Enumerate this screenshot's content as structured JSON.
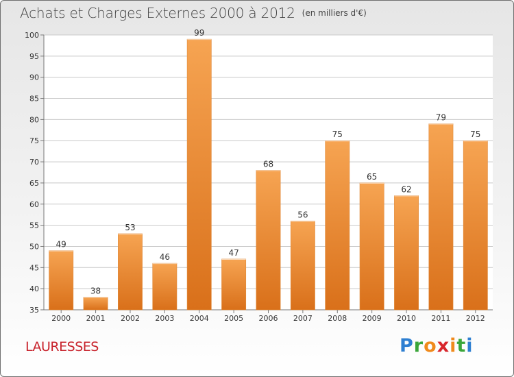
{
  "title": "Achats et Charges Externes 2000 à 2012",
  "unit": "(en milliers d'€)",
  "town": "LAURESSES",
  "logo": {
    "letters": [
      "P",
      "r",
      "o",
      "x",
      "i",
      "t",
      "i"
    ],
    "colors": [
      "#2e7fd1",
      "#3aa63a",
      "#f08a1c",
      "#d8262c",
      "#f08a1c",
      "#3aa63a",
      "#2e7fd1"
    ]
  },
  "colors": {
    "bar": "#f08a2c",
    "bar_light": "#f6a452",
    "bar_dark": "#d9701a",
    "grid": "#c8c8c8"
  },
  "chart_data": {
    "type": "bar",
    "title": "Achats et Charges Externes 2000 à 2012",
    "xlabel": "",
    "ylabel": "",
    "categories": [
      "2000",
      "2001",
      "2002",
      "2003",
      "2004",
      "2005",
      "2006",
      "2007",
      "2008",
      "2009",
      "2010",
      "2011",
      "2012"
    ],
    "values": [
      49,
      38,
      53,
      46,
      99,
      47,
      68,
      56,
      75,
      65,
      62,
      79,
      75
    ],
    "ylim": [
      35,
      100
    ],
    "yticks": [
      35,
      40,
      45,
      50,
      55,
      60,
      65,
      70,
      75,
      80,
      85,
      90,
      95,
      100
    ],
    "grid": true,
    "legend": "none"
  }
}
